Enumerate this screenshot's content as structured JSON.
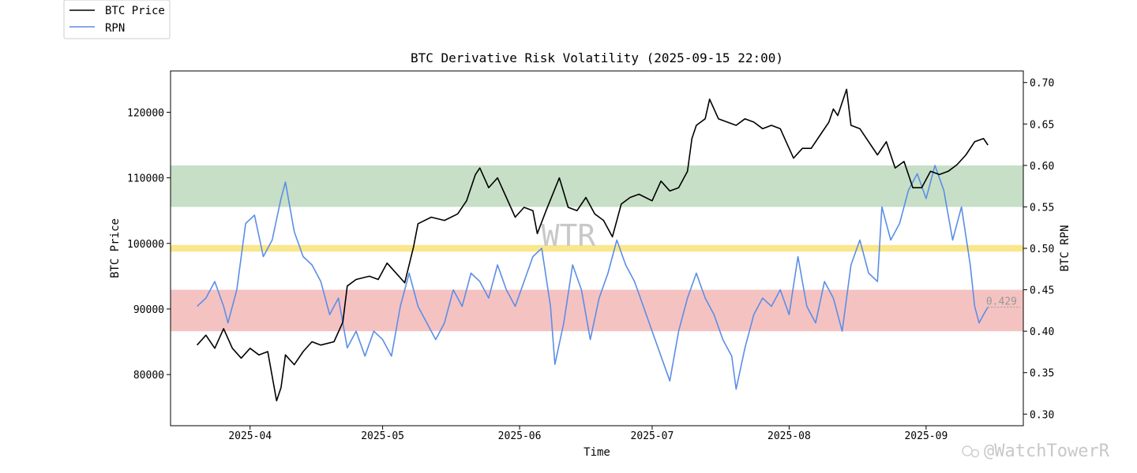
{
  "chart_data": {
    "type": "line",
    "title": "BTC Derivative Risk Volatility (2025-09-15 22:00)",
    "xlabel": "Time",
    "ylabel_left": "BTC Price",
    "ylabel_right": "BTC RPN",
    "x_range": [
      "2025-03-14",
      "2025-09-23"
    ],
    "x_ticks": [
      "2025-04",
      "2025-05",
      "2025-06",
      "2025-07",
      "2025-08",
      "2025-09"
    ],
    "x_tick_dates": [
      "2025-04-01",
      "2025-05-01",
      "2025-06-01",
      "2025-07-01",
      "2025-08-01",
      "2025-09-01"
    ],
    "ylim_left": [
      72200,
      126300
    ],
    "yticks_left": [
      80000,
      90000,
      100000,
      110000,
      120000
    ],
    "ylim_right": [
      0.286,
      0.714
    ],
    "yticks_right": [
      0.3,
      0.35,
      0.4,
      0.45,
      0.5,
      0.55,
      0.6,
      0.65,
      0.7
    ],
    "grid": false,
    "legend": {
      "placement": "top-left",
      "entries": [
        "BTC Price",
        "RPN"
      ]
    },
    "bands": [
      {
        "y0": 0.55,
        "y1": 0.6,
        "axis": "right",
        "color": "#c6dfc6"
      },
      {
        "y0": 0.496,
        "y1": 0.504,
        "axis": "right",
        "color": "#fae68c"
      },
      {
        "y0": 0.4,
        "y1": 0.45,
        "axis": "right",
        "color": "#f5c2c2"
      }
    ],
    "annotation": {
      "text": "0.429",
      "value": 0.429,
      "axis": "right"
    },
    "watermark_text": "WTR",
    "series": [
      {
        "name": "BTC Price",
        "axis": "left",
        "color": "#000000",
        "points": [
          [
            "2025-03-20",
            84500
          ],
          [
            "2025-03-22",
            86000
          ],
          [
            "2025-03-24",
            84000
          ],
          [
            "2025-03-26",
            87000
          ],
          [
            "2025-03-28",
            84000
          ],
          [
            "2025-03-30",
            82500
          ],
          [
            "2025-04-01",
            84000
          ],
          [
            "2025-04-03",
            83000
          ],
          [
            "2025-04-05",
            83500
          ],
          [
            "2025-04-07",
            76000
          ],
          [
            "2025-04-08",
            78000
          ],
          [
            "2025-04-09",
            83000
          ],
          [
            "2025-04-11",
            81500
          ],
          [
            "2025-04-13",
            83500
          ],
          [
            "2025-04-15",
            85000
          ],
          [
            "2025-04-17",
            84500
          ],
          [
            "2025-04-20",
            85000
          ],
          [
            "2025-04-22",
            88000
          ],
          [
            "2025-04-23",
            93500
          ],
          [
            "2025-04-25",
            94500
          ],
          [
            "2025-04-28",
            95000
          ],
          [
            "2025-04-30",
            94500
          ],
          [
            "2025-05-02",
            97000
          ],
          [
            "2025-05-04",
            95500
          ],
          [
            "2025-05-06",
            94000
          ],
          [
            "2025-05-08",
            99500
          ],
          [
            "2025-05-09",
            103000
          ],
          [
            "2025-05-12",
            104000
          ],
          [
            "2025-05-15",
            103500
          ],
          [
            "2025-05-18",
            104500
          ],
          [
            "2025-05-20",
            106500
          ],
          [
            "2025-05-22",
            110500
          ],
          [
            "2025-05-23",
            111500
          ],
          [
            "2025-05-25",
            108500
          ],
          [
            "2025-05-27",
            110000
          ],
          [
            "2025-05-29",
            107000
          ],
          [
            "2025-05-31",
            104000
          ],
          [
            "2025-06-02",
            105500
          ],
          [
            "2025-06-04",
            105000
          ],
          [
            "2025-06-05",
            101500
          ],
          [
            "2025-06-07",
            105000
          ],
          [
            "2025-06-10",
            110000
          ],
          [
            "2025-06-12",
            105500
          ],
          [
            "2025-06-14",
            105000
          ],
          [
            "2025-06-16",
            107000
          ],
          [
            "2025-06-18",
            104500
          ],
          [
            "2025-06-20",
            103500
          ],
          [
            "2025-06-22",
            101000
          ],
          [
            "2025-06-24",
            106000
          ],
          [
            "2025-06-26",
            107000
          ],
          [
            "2025-06-28",
            107500
          ],
          [
            "2025-07-01",
            106500
          ],
          [
            "2025-07-03",
            109500
          ],
          [
            "2025-07-05",
            108000
          ],
          [
            "2025-07-07",
            108500
          ],
          [
            "2025-07-09",
            111000
          ],
          [
            "2025-07-10",
            116000
          ],
          [
            "2025-07-11",
            118000
          ],
          [
            "2025-07-13",
            119000
          ],
          [
            "2025-07-14",
            122000
          ],
          [
            "2025-07-16",
            119000
          ],
          [
            "2025-07-18",
            118500
          ],
          [
            "2025-07-20",
            118000
          ],
          [
            "2025-07-22",
            119000
          ],
          [
            "2025-07-24",
            118500
          ],
          [
            "2025-07-26",
            117500
          ],
          [
            "2025-07-28",
            118000
          ],
          [
            "2025-07-30",
            117500
          ],
          [
            "2025-08-01",
            114500
          ],
          [
            "2025-08-02",
            113000
          ],
          [
            "2025-08-04",
            114500
          ],
          [
            "2025-08-06",
            114500
          ],
          [
            "2025-08-08",
            116500
          ],
          [
            "2025-08-10",
            118500
          ],
          [
            "2025-08-11",
            120500
          ],
          [
            "2025-08-12",
            119500
          ],
          [
            "2025-08-14",
            123500
          ],
          [
            "2025-08-15",
            118000
          ],
          [
            "2025-08-17",
            117500
          ],
          [
            "2025-08-19",
            115500
          ],
          [
            "2025-08-21",
            113500
          ],
          [
            "2025-08-23",
            115500
          ],
          [
            "2025-08-25",
            111500
          ],
          [
            "2025-08-27",
            112500
          ],
          [
            "2025-08-29",
            108500
          ],
          [
            "2025-08-31",
            108500
          ],
          [
            "2025-09-02",
            111000
          ],
          [
            "2025-09-04",
            110500
          ],
          [
            "2025-09-06",
            111000
          ],
          [
            "2025-09-08",
            112000
          ],
          [
            "2025-09-10",
            113500
          ],
          [
            "2025-09-12",
            115500
          ],
          [
            "2025-09-14",
            116000
          ],
          [
            "2025-09-15",
            115000
          ]
        ]
      },
      {
        "name": "RPN",
        "axis": "right",
        "color": "#5b8ee6",
        "points": [
          [
            "2025-03-20",
            0.43
          ],
          [
            "2025-03-22",
            0.44
          ],
          [
            "2025-03-24",
            0.46
          ],
          [
            "2025-03-26",
            0.43
          ],
          [
            "2025-03-27",
            0.41
          ],
          [
            "2025-03-29",
            0.45
          ],
          [
            "2025-03-31",
            0.53
          ],
          [
            "2025-04-02",
            0.54
          ],
          [
            "2025-04-04",
            0.49
          ],
          [
            "2025-04-06",
            0.51
          ],
          [
            "2025-04-08",
            0.56
          ],
          [
            "2025-04-09",
            0.58
          ],
          [
            "2025-04-11",
            0.52
          ],
          [
            "2025-04-13",
            0.49
          ],
          [
            "2025-04-15",
            0.48
          ],
          [
            "2025-04-17",
            0.46
          ],
          [
            "2025-04-19",
            0.42
          ],
          [
            "2025-04-21",
            0.44
          ],
          [
            "2025-04-23",
            0.38
          ],
          [
            "2025-04-25",
            0.4
          ],
          [
            "2025-04-27",
            0.37
          ],
          [
            "2025-04-29",
            0.4
          ],
          [
            "2025-05-01",
            0.39
          ],
          [
            "2025-05-03",
            0.37
          ],
          [
            "2025-05-05",
            0.43
          ],
          [
            "2025-05-07",
            0.47
          ],
          [
            "2025-05-09",
            0.43
          ],
          [
            "2025-05-11",
            0.41
          ],
          [
            "2025-05-13",
            0.39
          ],
          [
            "2025-05-15",
            0.41
          ],
          [
            "2025-05-17",
            0.45
          ],
          [
            "2025-05-19",
            0.43
          ],
          [
            "2025-05-21",
            0.47
          ],
          [
            "2025-05-23",
            0.46
          ],
          [
            "2025-05-25",
            0.44
          ],
          [
            "2025-05-27",
            0.48
          ],
          [
            "2025-05-29",
            0.45
          ],
          [
            "2025-05-31",
            0.43
          ],
          [
            "2025-06-02",
            0.46
          ],
          [
            "2025-06-04",
            0.49
          ],
          [
            "2025-06-06",
            0.5
          ],
          [
            "2025-06-08",
            0.43
          ],
          [
            "2025-06-09",
            0.36
          ],
          [
            "2025-06-11",
            0.41
          ],
          [
            "2025-06-13",
            0.48
          ],
          [
            "2025-06-15",
            0.45
          ],
          [
            "2025-06-17",
            0.39
          ],
          [
            "2025-06-19",
            0.44
          ],
          [
            "2025-06-21",
            0.47
          ],
          [
            "2025-06-23",
            0.51
          ],
          [
            "2025-06-25",
            0.48
          ],
          [
            "2025-06-27",
            0.46
          ],
          [
            "2025-06-29",
            0.43
          ],
          [
            "2025-07-01",
            0.4
          ],
          [
            "2025-07-03",
            0.37
          ],
          [
            "2025-07-05",
            0.34
          ],
          [
            "2025-07-07",
            0.4
          ],
          [
            "2025-07-09",
            0.44
          ],
          [
            "2025-07-11",
            0.47
          ],
          [
            "2025-07-13",
            0.44
          ],
          [
            "2025-07-15",
            0.42
          ],
          [
            "2025-07-17",
            0.39
          ],
          [
            "2025-07-19",
            0.37
          ],
          [
            "2025-07-20",
            0.33
          ],
          [
            "2025-07-22",
            0.38
          ],
          [
            "2025-07-24",
            0.42
          ],
          [
            "2025-07-26",
            0.44
          ],
          [
            "2025-07-28",
            0.43
          ],
          [
            "2025-07-30",
            0.45
          ],
          [
            "2025-08-01",
            0.42
          ],
          [
            "2025-08-03",
            0.49
          ],
          [
            "2025-08-05",
            0.43
          ],
          [
            "2025-08-07",
            0.41
          ],
          [
            "2025-08-09",
            0.46
          ],
          [
            "2025-08-11",
            0.44
          ],
          [
            "2025-08-13",
            0.4
          ],
          [
            "2025-08-15",
            0.48
          ],
          [
            "2025-08-17",
            0.51
          ],
          [
            "2025-08-19",
            0.47
          ],
          [
            "2025-08-21",
            0.46
          ],
          [
            "2025-08-22",
            0.55
          ],
          [
            "2025-08-24",
            0.51
          ],
          [
            "2025-08-26",
            0.53
          ],
          [
            "2025-08-28",
            0.57
          ],
          [
            "2025-08-30",
            0.59
          ],
          [
            "2025-09-01",
            0.56
          ],
          [
            "2025-09-03",
            0.6
          ],
          [
            "2025-09-05",
            0.57
          ],
          [
            "2025-09-07",
            0.51
          ],
          [
            "2025-09-09",
            0.55
          ],
          [
            "2025-09-11",
            0.48
          ],
          [
            "2025-09-12",
            0.43
          ],
          [
            "2025-09-13",
            0.41
          ],
          [
            "2025-09-14",
            0.42
          ],
          [
            "2025-09-15",
            0.429
          ]
        ]
      }
    ]
  },
  "watermark": {
    "text": "@WatchTowerR"
  }
}
